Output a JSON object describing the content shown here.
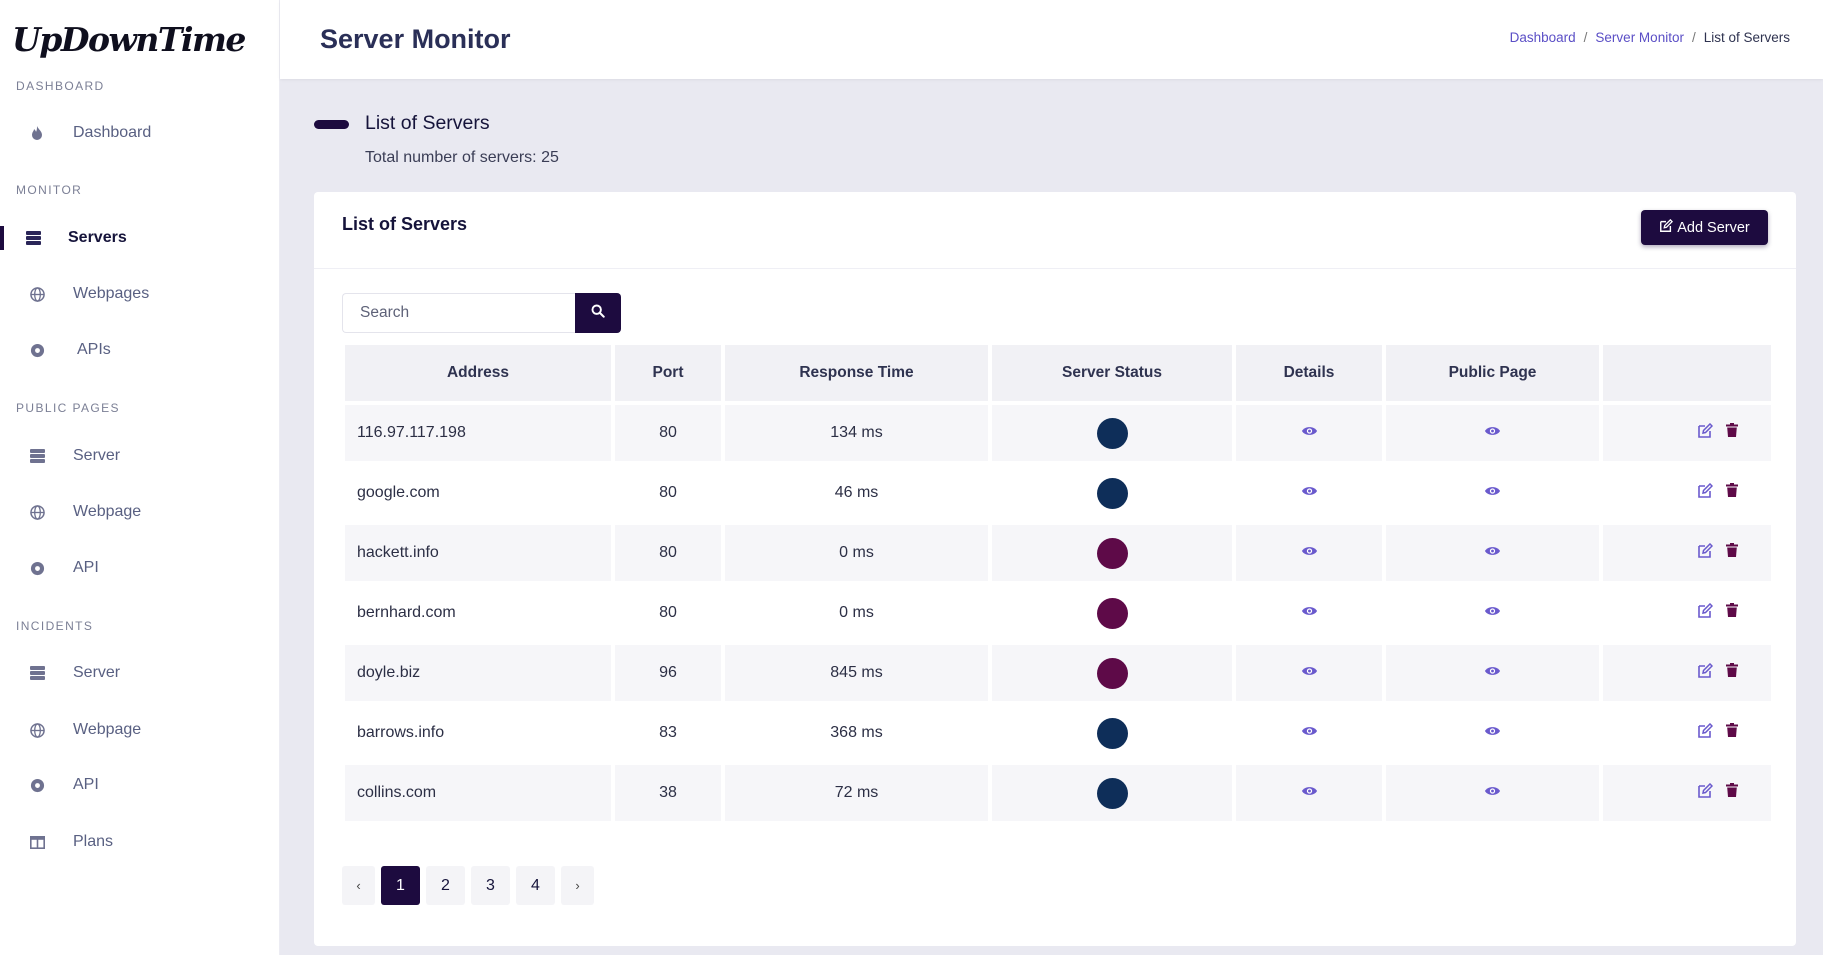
{
  "app": {
    "logo": "UpDownTime"
  },
  "sidebar": {
    "sections": [
      {
        "title": "DASHBOARD",
        "items": [
          {
            "label": "Dashboard",
            "icon": "fire-icon"
          }
        ]
      },
      {
        "title": "MONITOR",
        "items": [
          {
            "label": "Servers",
            "icon": "server-icon",
            "active": true
          },
          {
            "label": "Webpages",
            "icon": "globe-icon"
          },
          {
            "label": "APIs",
            "icon": "dot-circle-icon"
          }
        ]
      },
      {
        "title": "PUBLIC PAGES",
        "items": [
          {
            "label": "Server",
            "icon": "server-icon"
          },
          {
            "label": "Webpage",
            "icon": "globe-icon"
          },
          {
            "label": "API",
            "icon": "dot-circle-icon"
          }
        ]
      },
      {
        "title": "INCIDENTS",
        "items": [
          {
            "label": "Server",
            "icon": "server-icon"
          },
          {
            "label": "Webpage",
            "icon": "globe-icon"
          },
          {
            "label": "API",
            "icon": "dot-circle-icon"
          },
          {
            "label": "Plans",
            "icon": "table-icon"
          }
        ]
      }
    ]
  },
  "header": {
    "title": "Server Monitor",
    "breadcrumb": {
      "item1": "Dashboard",
      "item2": "Server Monitor",
      "current": "List of Servers",
      "separator": "/"
    }
  },
  "subheader": {
    "title": "List of Servers",
    "count_text": "Total number of servers: 25"
  },
  "card": {
    "title": "List of Servers",
    "add_label": "Add Server",
    "search_placeholder": "Search"
  },
  "table": {
    "columns": [
      "Address",
      "Port",
      "Response Time",
      "Server Status",
      "Details",
      "Public Page",
      ""
    ],
    "rows": [
      {
        "address": "116.97.117.198",
        "port": "80",
        "response": "134 ms",
        "status": "up"
      },
      {
        "address": "google.com",
        "port": "80",
        "response": "46 ms",
        "status": "up"
      },
      {
        "address": "hackett.info",
        "port": "80",
        "response": "0 ms",
        "status": "down"
      },
      {
        "address": "bernhard.com",
        "port": "80",
        "response": "0 ms",
        "status": "down"
      },
      {
        "address": "doyle.biz",
        "port": "96",
        "response": "845 ms",
        "status": "down"
      },
      {
        "address": "barrows.info",
        "port": "83",
        "response": "368 ms",
        "status": "up"
      },
      {
        "address": "collins.com",
        "port": "38",
        "response": "72 ms",
        "status": "up"
      }
    ]
  },
  "status_colors": {
    "up": "#0e2e59",
    "down": "#5e0a48"
  },
  "colors": {
    "accent": "#1d0b3f",
    "link": "#5b4fc6",
    "icon": "#6a5acd",
    "delete": "#5e0a48"
  },
  "pagination": {
    "prev": "‹",
    "next": "›",
    "pages": [
      "1",
      "2",
      "3",
      "4"
    ],
    "current": "1"
  }
}
